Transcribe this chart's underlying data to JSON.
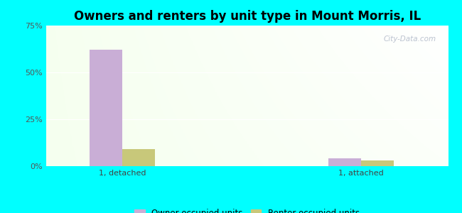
{
  "title": "Owners and renters by unit type in Mount Morris, IL",
  "categories": [
    "1, detached",
    "1, attached"
  ],
  "owner_values": [
    62.0,
    4.0
  ],
  "renter_values": [
    9.0,
    3.0
  ],
  "owner_color": "#c9aed6",
  "renter_color": "#c8c87a",
  "ylim": [
    0,
    75
  ],
  "yticks": [
    0,
    25,
    50,
    75
  ],
  "ytick_labels": [
    "0%",
    "25%",
    "50%",
    "75%"
  ],
  "bar_width": 0.3,
  "background_color": "#00ffff",
  "title_fontsize": 12,
  "watermark": "City-Data.com",
  "x_positions": [
    1.0,
    3.2
  ],
  "xlim": [
    0.3,
    4.0
  ]
}
